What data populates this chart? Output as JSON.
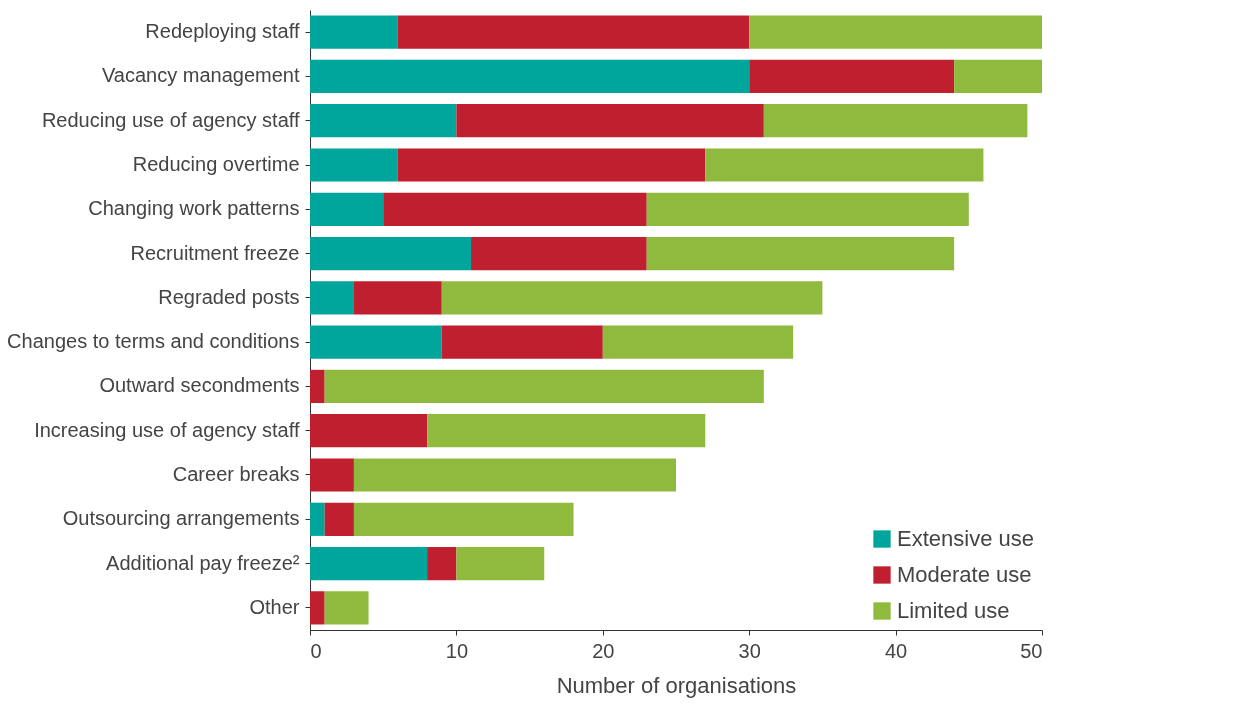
{
  "chart_data": {
    "type": "bar",
    "orientation": "horizontal",
    "stacked": true,
    "xlabel": "Number of organisations",
    "categories": [
      "Redeploying staff",
      "Vacancy management",
      "Reducing use of agency staff",
      "Reducing overtime",
      "Changing work patterns",
      "Recruitment freeze",
      "Regraded posts",
      "Changes to terms and conditions",
      "Outward secondments",
      "Increasing use of agency staff",
      "Career breaks",
      "Outsourcing arrangements",
      "Additional pay freeze²",
      "Other"
    ],
    "series": [
      {
        "name": "Extensive use",
        "color": "#00a59c",
        "values": [
          6,
          30,
          10,
          6,
          5,
          11,
          3,
          9,
          0,
          0,
          0,
          1,
          8,
          0
        ]
      },
      {
        "name": "Moderate use",
        "color": "#c01f2f",
        "values": [
          24,
          14,
          21,
          21,
          18,
          12,
          6,
          11,
          1,
          8,
          3,
          2,
          2,
          1
        ]
      },
      {
        "name": "Limited use",
        "color": "#8fba3d",
        "values": [
          20,
          6,
          18,
          19,
          22,
          21,
          26,
          13,
          30,
          19,
          22,
          15,
          6,
          3
        ]
      }
    ],
    "xlim": [
      0,
      50
    ],
    "xticks": [
      0,
      10,
      20,
      30,
      40,
      50
    ],
    "grid": false,
    "legend": "bottom right"
  }
}
